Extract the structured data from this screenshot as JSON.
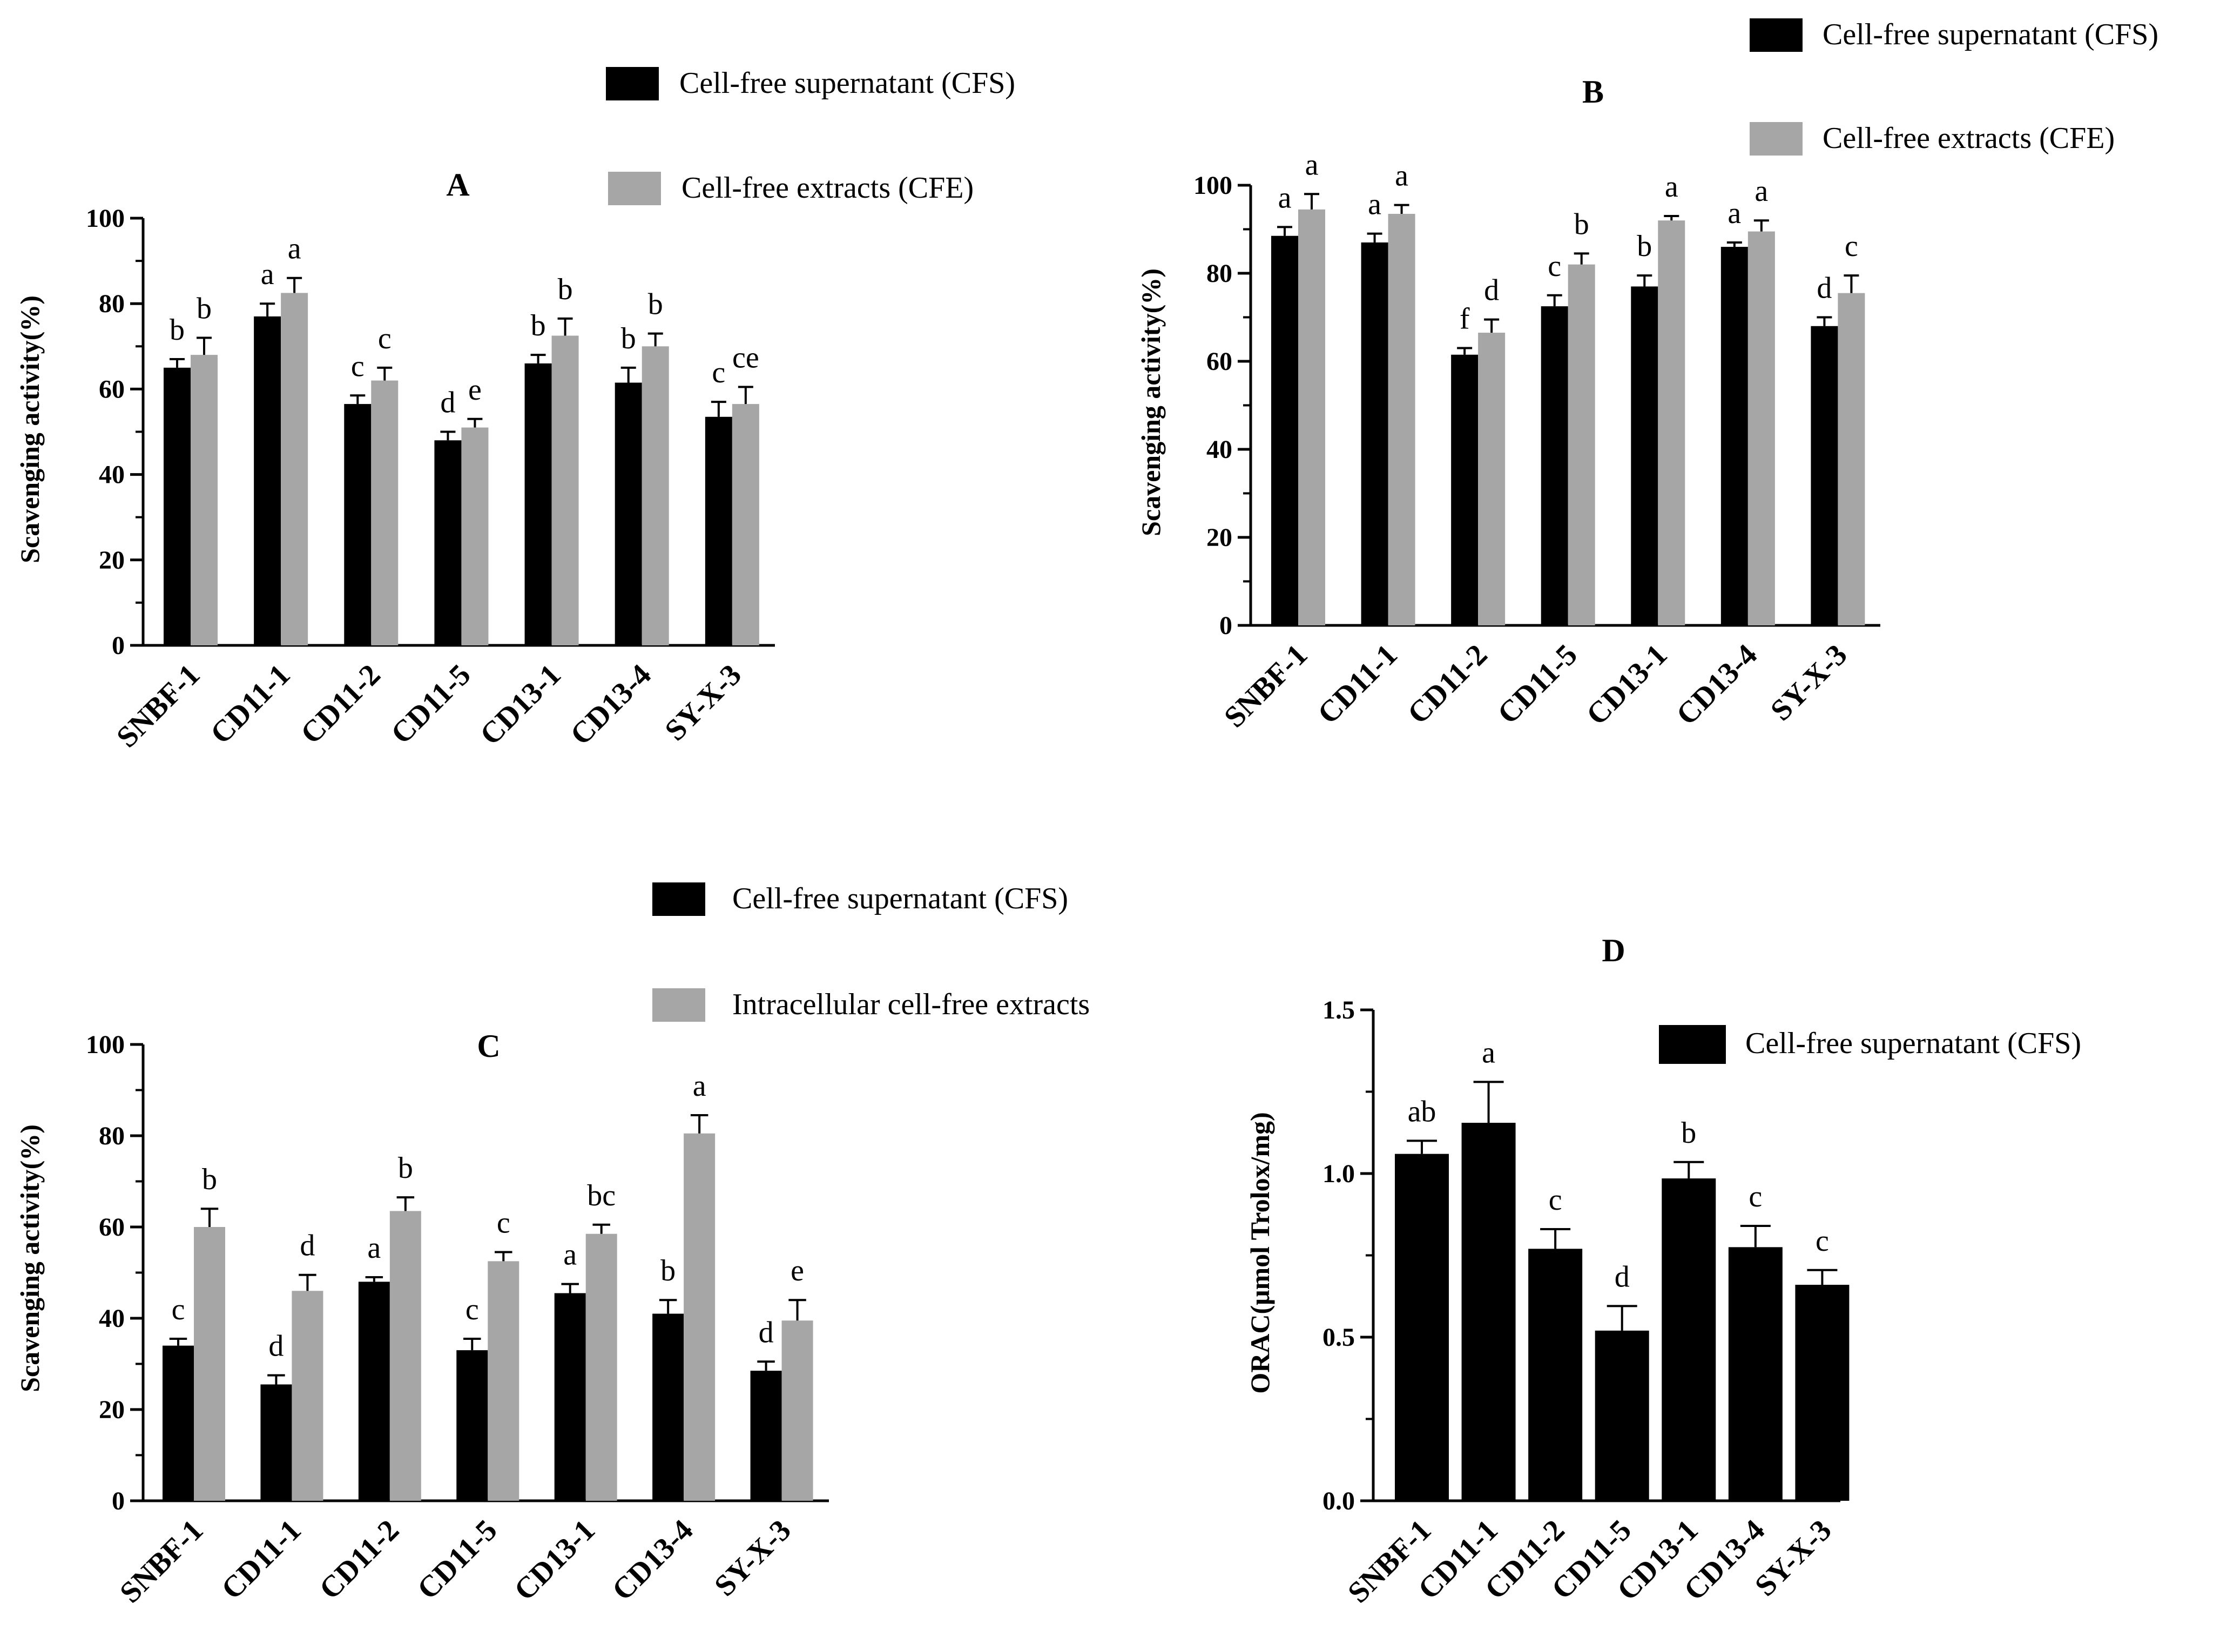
{
  "colors": {
    "cfs": "#000000",
    "cfe": "#a6a6a6",
    "axis": "#000000"
  },
  "chart_data": [
    {
      "panel": "A",
      "type": "bar",
      "title": "A",
      "ylabel": "Scavenging activity(%)",
      "ylim": [
        0,
        100
      ],
      "yticks": [
        "0",
        "20",
        "40",
        "60",
        "80",
        "100"
      ],
      "categories": [
        "SNBF-1",
        "CD11-1",
        "CD11-2",
        "CD11-5",
        "CD13-1",
        "CD13-4",
        "SY-X-3"
      ],
      "series": [
        {
          "name": "Cell-free supernatant (CFS)",
          "values": [
            65,
            77,
            56.5,
            48,
            66,
            61.5,
            53.5
          ],
          "errors": [
            2,
            3,
            2,
            2,
            2,
            3.5,
            3.5
          ],
          "letters": [
            "b",
            "a",
            "c",
            "d",
            "b",
            "b",
            "c"
          ]
        },
        {
          "name": "Cell-free extracts  (CFE)",
          "values": [
            68,
            82.5,
            62,
            51,
            72.5,
            70,
            56.5
          ],
          "errors": [
            4,
            3.5,
            3,
            2,
            4,
            3,
            4
          ],
          "letters": [
            "b",
            "a",
            "c",
            "e",
            "b",
            "b",
            "ce"
          ]
        }
      ]
    },
    {
      "panel": "B",
      "type": "bar",
      "title": "B",
      "ylabel": "Scavenging activity(%)",
      "ylim": [
        0,
        100
      ],
      "yticks": [
        "0",
        "20",
        "40",
        "60",
        "80",
        "100"
      ],
      "categories": [
        "SNBF-1",
        "CD11-1",
        "CD11-2",
        "CD11-5",
        "CD13-1",
        "CD13-4",
        "SY-X-3"
      ],
      "series": [
        {
          "name": "Cell-free supernatant (CFS)",
          "values": [
            88.5,
            87,
            61.5,
            72.5,
            77,
            86,
            68
          ],
          "errors": [
            2,
            2,
            1.5,
            2.5,
            2.5,
            1,
            2
          ],
          "letters": [
            "a",
            "a",
            "f",
            "c",
            "b",
            "a",
            "d"
          ]
        },
        {
          "name": "Cell-free extracts  (CFE)",
          "values": [
            94.5,
            93.5,
            66.5,
            82,
            92,
            89.5,
            75.5
          ],
          "errors": [
            3.5,
            2,
            3,
            2.5,
            1,
            2.5,
            4
          ],
          "letters": [
            "a",
            "a",
            "d",
            "b",
            "a",
            "a",
            "c"
          ]
        }
      ]
    },
    {
      "panel": "C",
      "type": "bar",
      "title": "C",
      "ylabel": "Scavenging activity(%)",
      "ylim": [
        0,
        100
      ],
      "yticks": [
        "0",
        "20",
        "40",
        "60",
        "80",
        "100"
      ],
      "categories": [
        "SNBF-1",
        "CD11-1",
        "CD11-2",
        "CD11-5",
        "CD13-1",
        "CD13-4",
        "SY-X-3"
      ],
      "series": [
        {
          "name": "Cell-free supernatant (CFS)",
          "values": [
            34,
            25.5,
            48,
            33,
            45.5,
            41,
            28.5
          ],
          "errors": [
            1.5,
            2,
            1,
            2.5,
            2,
            3,
            2
          ],
          "letters": [
            "c",
            "d",
            "a",
            "c",
            "a",
            "b",
            "d"
          ]
        },
        {
          "name": "Intracellular cell-free extracts",
          "values": [
            60,
            46,
            63.5,
            52.5,
            58.5,
            80.5,
            39.5
          ],
          "errors": [
            4,
            3.5,
            3,
            2,
            2,
            4,
            4.5
          ],
          "letters": [
            "b",
            "d",
            "b",
            "c",
            "bc",
            "a",
            "e"
          ]
        }
      ]
    },
    {
      "panel": "D",
      "type": "bar",
      "title": "D",
      "ylabel": "ORAC(μmol Trolox/mg)",
      "ylim": [
        0,
        1.5
      ],
      "yticks": [
        "0.0",
        "0.5",
        "1.0",
        "1.5"
      ],
      "categories": [
        "SNBF-1",
        "CD11-1",
        "CD11-2",
        "CD11-5",
        "CD13-1",
        "CD13-4",
        "SY-X-3"
      ],
      "series": [
        {
          "name": "Cell-free supernatant (CFS)",
          "values": [
            1.06,
            1.155,
            0.77,
            0.52,
            0.985,
            0.775,
            0.66
          ],
          "errors": [
            0.04,
            0.125,
            0.06,
            0.075,
            0.05,
            0.065,
            0.045
          ],
          "letters": [
            "ab",
            "a",
            "c",
            "d",
            "b",
            "c",
            "c"
          ]
        }
      ]
    }
  ]
}
